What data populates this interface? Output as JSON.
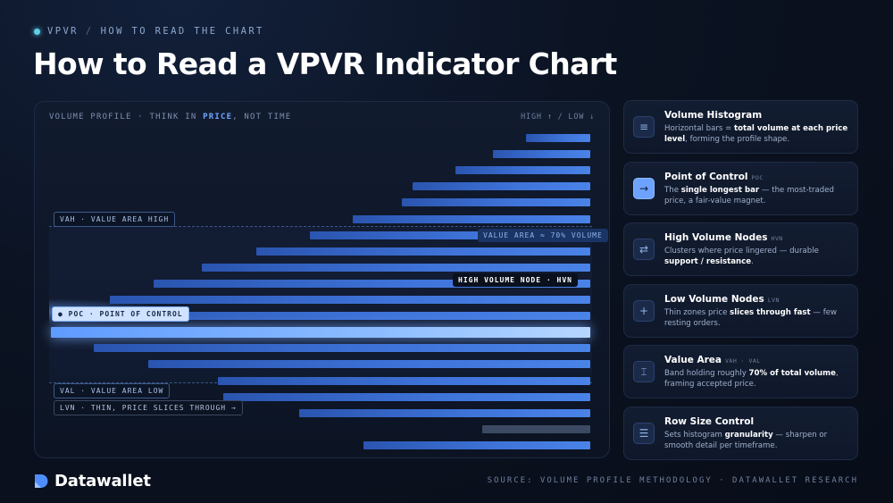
{
  "header": {
    "breadcrumb_root": "VPVR",
    "breadcrumb_sep": "/",
    "breadcrumb_current": "HOW TO READ THE CHART",
    "title": "How to Read a VPVR Indicator Chart"
  },
  "panel": {
    "heading_pre": "VOLUME PROFILE · THINK IN ",
    "heading_hl": "PRICE",
    "heading_post": ", NOT TIME",
    "direction": "HIGH ↑ / LOW ↓",
    "tags": {
      "vah": "VAH · VALUE AREA HIGH",
      "value_area": "VALUE AREA ≈ 70% VOLUME",
      "hvn": "HIGH VOLUME NODE · HVN",
      "poc": "● POC · POINT OF CONTROL",
      "val": "VAL · VALUE AREA LOW",
      "lvn": "LVN · THIN, PRICE SLICES THROUGH →"
    }
  },
  "chart_data": {
    "type": "bar",
    "orientation": "horizontal",
    "rows_top_to_bottom": [
      12,
      18,
      25,
      33,
      35,
      44,
      52,
      62,
      72,
      81,
      89,
      95,
      100,
      92,
      82,
      69,
      68,
      54,
      20,
      42,
      30,
      17
    ],
    "poc_row": 12,
    "value_area_rows": [
      6,
      17
    ],
    "lvn_row": 18,
    "value_area_share": 0.7
  },
  "cards": [
    {
      "icon": "histogram-icon",
      "glyph": "≡",
      "title": "Volume Histogram",
      "abbr": "",
      "desc": [
        {
          "t": "Horizontal bars = ",
          "b": false
        },
        {
          "t": "total volume at each price level",
          "b": true
        },
        {
          "t": ", forming the profile shape.",
          "b": false
        }
      ]
    },
    {
      "icon": "arrow-right-icon",
      "glyph": "→",
      "title": "Point of Control",
      "abbr": "POC",
      "desc": [
        {
          "t": "The ",
          "b": false
        },
        {
          "t": "single longest bar",
          "b": true
        },
        {
          "t": " — the most-traded price, a fair-value magnet.",
          "b": false
        }
      ]
    },
    {
      "icon": "cluster-icon",
      "glyph": "⇄",
      "title": "High Volume Nodes",
      "abbr": "HVN",
      "desc": [
        {
          "t": "Clusters where price lingered — durable ",
          "b": false
        },
        {
          "t": "support / resistance",
          "b": true
        },
        {
          "t": ".",
          "b": false
        }
      ]
    },
    {
      "icon": "crosshair-icon",
      "glyph": "+",
      "title": "Low Volume Nodes",
      "abbr": "LVN",
      "desc": [
        {
          "t": "Thin zones price ",
          "b": false
        },
        {
          "t": "slices through fast",
          "b": true
        },
        {
          "t": " — few resting orders.",
          "b": false
        }
      ]
    },
    {
      "icon": "bracket-icon",
      "glyph": "⌶",
      "title": "Value Area",
      "abbr": "VAH · VAL",
      "desc": [
        {
          "t": "Band holding roughly ",
          "b": false
        },
        {
          "t": "70% of total volume",
          "b": true
        },
        {
          "t": ", framing accepted price.",
          "b": false
        }
      ]
    },
    {
      "icon": "sliders-icon",
      "glyph": "☰",
      "title": "Row Size Control",
      "abbr": "",
      "desc": [
        {
          "t": "Sets histogram ",
          "b": false
        },
        {
          "t": "granularity",
          "b": true
        },
        {
          "t": " — sharpen or smooth detail per timeframe.",
          "b": false
        }
      ]
    }
  ],
  "footer": {
    "brand": "Datawallet",
    "source": "SOURCE: VOLUME PROFILE METHODOLOGY · DATAWALLET RESEARCH"
  },
  "colors": {
    "accent": "#6da3ff",
    "bar": "#3f74da",
    "poc": "#b6d6ff",
    "lvn": "#3b4a62"
  }
}
